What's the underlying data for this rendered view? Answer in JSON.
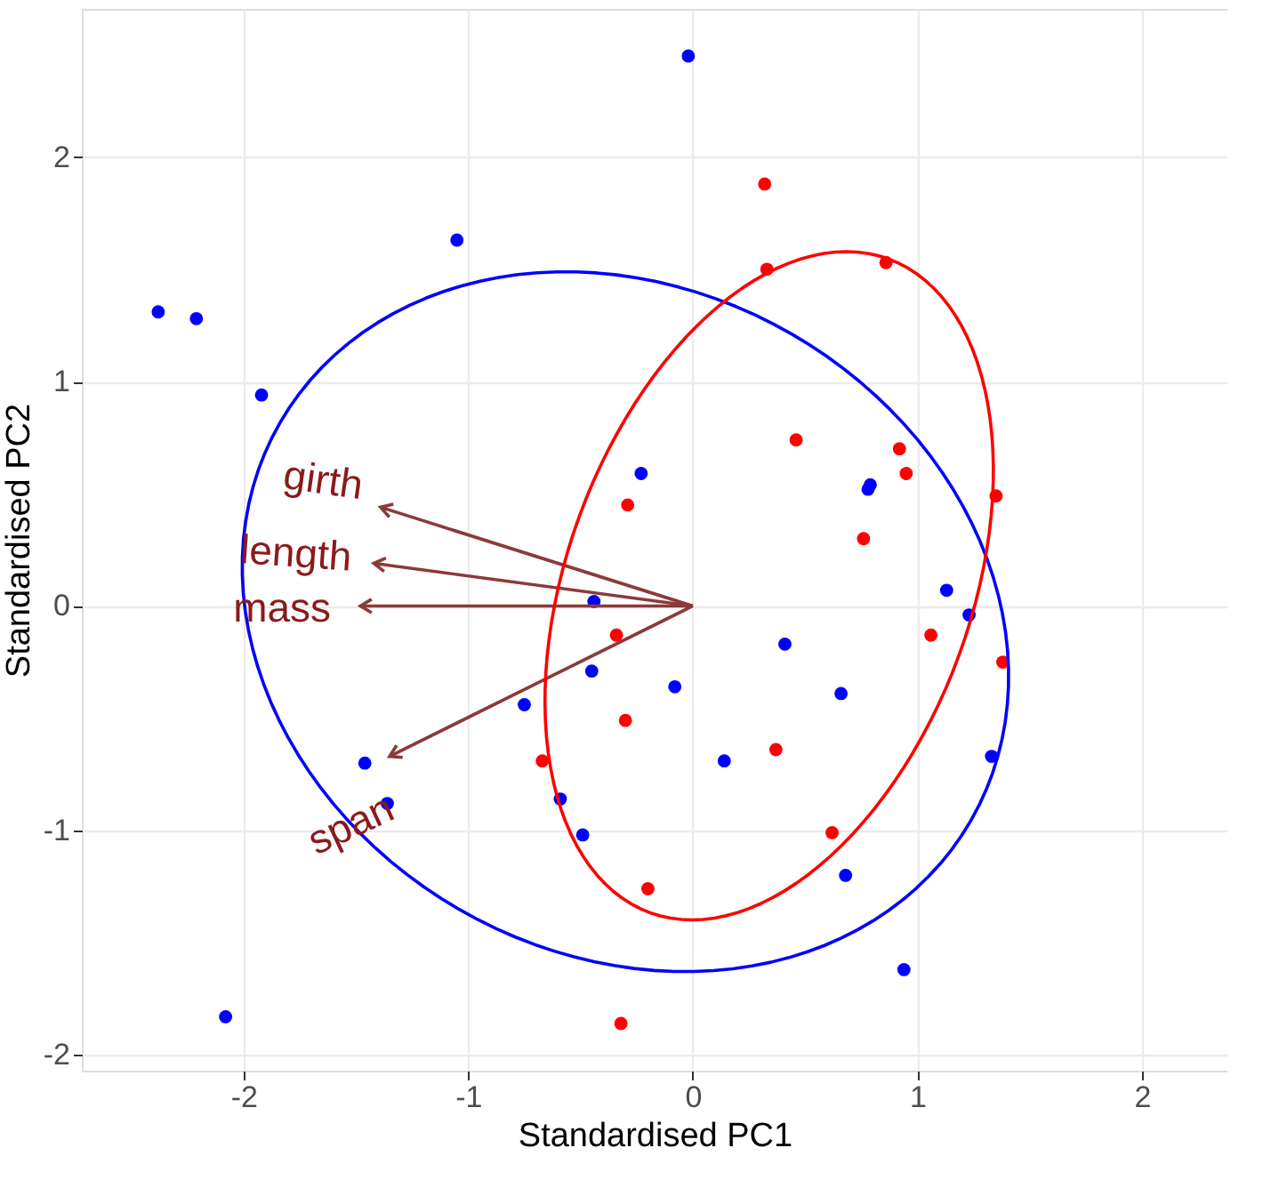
{
  "chart_data": {
    "type": "scatter",
    "xlabel": "Standardised PC1",
    "ylabel": "Standardised PC2",
    "xlim": [
      -2.72,
      2.38
    ],
    "ylim": [
      -2.07,
      2.66
    ],
    "xticks": [
      -2,
      -1,
      0,
      1,
      2
    ],
    "yticks": [
      -2,
      -1,
      0,
      1,
      2
    ],
    "grid": true,
    "series": [
      {
        "marker": "circle",
        "color": "#0000ff",
        "x": [
          -2.38,
          -2.21,
          -1.92,
          -1.05,
          -0.02,
          -0.23,
          -0.44,
          -0.45,
          -0.75,
          -0.08,
          0.41,
          0.14,
          -1.46,
          -1.36,
          -0.59,
          -0.49,
          0.78,
          0.79,
          1.13,
          1.23,
          0.66,
          1.33,
          0.68,
          0.94,
          -2.08
        ],
        "values": [
          1.31,
          1.28,
          0.94,
          1.63,
          2.45,
          0.59,
          0.02,
          -0.29,
          -0.44,
          -0.36,
          -0.17,
          -0.69,
          -0.7,
          -0.88,
          -0.86,
          -1.02,
          0.52,
          0.54,
          0.07,
          -0.04,
          -0.39,
          -0.67,
          -1.2,
          -1.62,
          -1.83
        ]
      },
      {
        "marker": "circle",
        "color": "#ff0000",
        "x": [
          0.32,
          0.33,
          0.86,
          0.46,
          0.92,
          0.95,
          0.76,
          1.35,
          -0.29,
          -0.34,
          -0.3,
          -0.67,
          0.37,
          1.06,
          1.38,
          0.62,
          -0.2,
          -0.32
        ],
        "values": [
          1.88,
          1.5,
          1.53,
          0.74,
          0.7,
          0.59,
          0.3,
          0.49,
          0.45,
          -0.13,
          -0.51,
          -0.69,
          -0.64,
          -0.13,
          -0.25,
          -1.01,
          -1.26,
          -1.86
        ]
      },
      {
        "type": "line",
        "color": "#8b3a3a",
        "x": [
          0,
          -1.39
        ],
        "values": [
          0,
          0.44
        ]
      },
      {
        "type": "line",
        "color": "#8b3a3a",
        "x": [
          0,
          -1.42
        ],
        "values": [
          0,
          0.19
        ]
      },
      {
        "type": "line",
        "color": "#8b3a3a",
        "x": [
          0,
          -1.48
        ],
        "values": [
          0,
          0
        ]
      },
      {
        "type": "line",
        "color": "#8b3a3a",
        "x": [
          0,
          -1.35
        ],
        "values": [
          0,
          -0.67
        ]
      }
    ],
    "annotations": [
      "girth",
      "length",
      "mass",
      "span"
    ]
  }
}
